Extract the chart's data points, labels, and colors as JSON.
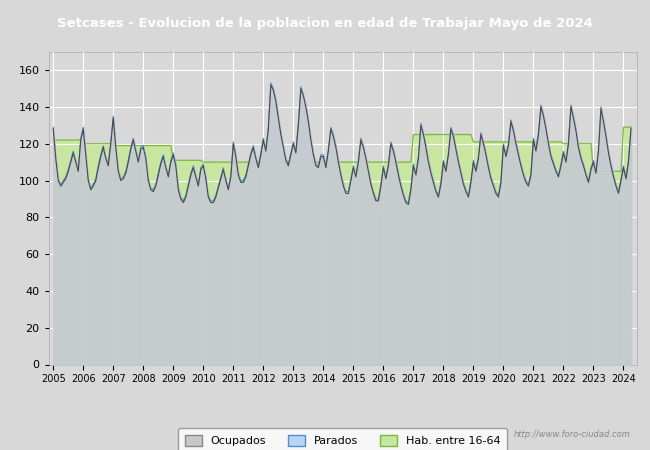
{
  "title": "Setcases - Evolucion de la poblacion en edad de Trabajar Mayo de 2024",
  "title_bg_color": "#4472c4",
  "title_text_color": "#ffffff",
  "ylim": [
    0,
    170
  ],
  "yticks": [
    0,
    20,
    40,
    60,
    80,
    100,
    120,
    140,
    160
  ],
  "plot_bg_color": "#d8d8d8",
  "fig_bg_color": "#d8d8d8",
  "grid_color": "#ffffff",
  "legend_labels": [
    "Ocupados",
    "Parados",
    "Hab. entre 16-64"
  ],
  "url_text": "http://www.foro-ciudad.com",
  "watermark": "foro-ciudad.com",
  "start_year": 2005,
  "end_year": 2024,
  "hab1664": [
    122,
    122,
    122,
    122,
    122,
    122,
    122,
    122,
    122,
    122,
    122,
    122,
    120,
    120,
    120,
    120,
    120,
    120,
    120,
    120,
    120,
    120,
    120,
    120,
    119,
    119,
    119,
    119,
    119,
    119,
    119,
    119,
    119,
    119,
    119,
    119,
    119,
    119,
    119,
    119,
    119,
    119,
    119,
    119,
    119,
    119,
    119,
    119,
    111,
    111,
    111,
    111,
    111,
    111,
    111,
    111,
    111,
    111,
    111,
    111,
    110,
    110,
    110,
    110,
    110,
    110,
    110,
    110,
    110,
    110,
    110,
    110,
    110,
    110,
    110,
    110,
    110,
    110,
    110,
    110,
    110,
    110,
    110,
    110,
    110,
    110,
    110,
    110,
    110,
    110,
    110,
    110,
    110,
    110,
    110,
    110,
    110,
    110,
    110,
    110,
    110,
    110,
    110,
    110,
    110,
    110,
    110,
    110,
    110,
    110,
    110,
    110,
    110,
    110,
    110,
    110,
    110,
    110,
    110,
    110,
    110,
    110,
    110,
    110,
    110,
    110,
    110,
    110,
    110,
    110,
    110,
    110,
    110,
    110,
    110,
    110,
    110,
    110,
    110,
    110,
    110,
    110,
    110,
    110,
    125,
    125,
    125,
    125,
    125,
    125,
    125,
    125,
    125,
    125,
    125,
    125,
    125,
    125,
    125,
    125,
    125,
    125,
    125,
    125,
    125,
    125,
    125,
    125,
    121,
    121,
    121,
    121,
    121,
    121,
    121,
    121,
    121,
    121,
    121,
    121,
    121,
    121,
    121,
    121,
    121,
    121,
    121,
    121,
    121,
    121,
    121,
    121,
    121,
    121,
    121,
    121,
    121,
    121,
    121,
    121,
    121,
    121,
    121,
    121,
    120,
    120,
    120,
    120,
    120,
    120,
    120,
    120,
    120,
    120,
    120,
    120,
    105,
    105,
    105,
    105,
    105,
    105,
    105,
    105,
    105,
    105,
    105,
    105,
    129,
    129,
    129,
    129
  ],
  "ocupados": [
    128,
    112,
    100,
    97,
    99,
    101,
    105,
    110,
    115,
    110,
    105,
    122,
    128,
    114,
    100,
    95,
    97,
    100,
    107,
    113,
    118,
    112,
    108,
    120,
    134,
    118,
    105,
    100,
    101,
    104,
    110,
    117,
    122,
    116,
    110,
    117,
    118,
    112,
    100,
    95,
    94,
    97,
    103,
    109,
    113,
    107,
    102,
    110,
    114,
    108,
    95,
    90,
    88,
    91,
    97,
    103,
    107,
    102,
    97,
    106,
    108,
    101,
    91,
    88,
    88,
    91,
    96,
    101,
    106,
    100,
    95,
    102,
    120,
    113,
    103,
    99,
    99,
    102,
    108,
    114,
    118,
    112,
    107,
    114,
    122,
    116,
    128,
    152,
    149,
    143,
    134,
    125,
    118,
    111,
    108,
    114,
    120,
    115,
    130,
    150,
    146,
    140,
    132,
    122,
    114,
    108,
    107,
    113,
    113,
    107,
    116,
    128,
    124,
    118,
    110,
    103,
    97,
    93,
    93,
    100,
    107,
    102,
    110,
    122,
    118,
    112,
    105,
    98,
    93,
    89,
    89,
    97,
    107,
    101,
    108,
    120,
    116,
    110,
    103,
    97,
    92,
    88,
    87,
    95,
    108,
    103,
    112,
    130,
    125,
    118,
    110,
    104,
    99,
    94,
    91,
    98,
    110,
    105,
    114,
    128,
    124,
    117,
    110,
    104,
    98,
    94,
    91,
    99,
    110,
    105,
    112,
    125,
    120,
    114,
    107,
    101,
    97,
    93,
    91,
    99,
    119,
    113,
    119,
    132,
    127,
    120,
    114,
    108,
    103,
    99,
    97,
    103,
    122,
    116,
    125,
    140,
    135,
    128,
    120,
    113,
    109,
    105,
    102,
    108,
    115,
    110,
    120,
    140,
    134,
    127,
    118,
    112,
    108,
    103,
    99,
    106,
    110,
    104,
    116,
    139,
    132,
    124,
    115,
    108,
    102,
    97,
    93,
    100,
    107,
    101,
    110,
    128
  ],
  "parados": [
    129,
    113,
    101,
    98,
    100,
    102,
    106,
    111,
    116,
    111,
    106,
    123,
    129,
    115,
    101,
    96,
    98,
    101,
    108,
    114,
    119,
    113,
    109,
    121,
    135,
    119,
    106,
    101,
    102,
    105,
    111,
    118,
    123,
    117,
    111,
    118,
    119,
    113,
    101,
    96,
    95,
    98,
    104,
    110,
    114,
    108,
    103,
    111,
    115,
    109,
    96,
    91,
    89,
    92,
    98,
    104,
    108,
    103,
    98,
    107,
    109,
    102,
    92,
    89,
    89,
    92,
    97,
    102,
    107,
    101,
    96,
    103,
    121,
    114,
    104,
    100,
    100,
    103,
    109,
    115,
    119,
    113,
    108,
    115,
    123,
    117,
    129,
    153,
    150,
    144,
    135,
    126,
    119,
    112,
    109,
    115,
    121,
    116,
    131,
    151,
    147,
    141,
    133,
    123,
    115,
    109,
    108,
    114,
    114,
    108,
    117,
    129,
    125,
    119,
    111,
    104,
    98,
    94,
    94,
    101,
    108,
    103,
    111,
    123,
    119,
    113,
    106,
    99,
    94,
    90,
    90,
    98,
    108,
    102,
    109,
    121,
    117,
    111,
    104,
    98,
    93,
    89,
    88,
    96,
    109,
    104,
    113,
    131,
    126,
    119,
    111,
    105,
    100,
    95,
    92,
    99,
    111,
    106,
    115,
    129,
    125,
    118,
    111,
    105,
    99,
    95,
    92,
    100,
    111,
    106,
    113,
    126,
    121,
    115,
    108,
    102,
    98,
    94,
    92,
    100,
    120,
    114,
    120,
    133,
    128,
    121,
    115,
    109,
    104,
    100,
    98,
    104,
    123,
    117,
    126,
    141,
    136,
    129,
    121,
    114,
    110,
    106,
    103,
    109,
    116,
    111,
    121,
    141,
    135,
    128,
    119,
    113,
    109,
    104,
    100,
    107,
    111,
    105,
    117,
    140,
    133,
    125,
    116,
    109,
    103,
    98,
    94,
    101,
    108,
    102,
    111,
    129
  ]
}
